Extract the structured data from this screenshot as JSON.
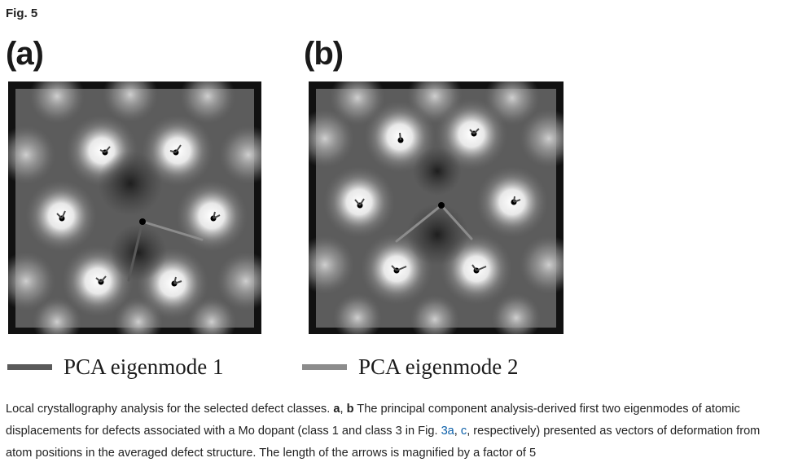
{
  "figure": {
    "label": "Fig. 5",
    "panels": [
      {
        "id": "a",
        "letter": "(a)"
      },
      {
        "id": "b",
        "letter": "(b)"
      }
    ],
    "legend": [
      {
        "label": "PCA eigenmode 1",
        "color": "#5a5a5a"
      },
      {
        "label": "PCA eigenmode 2",
        "color": "#8c8c8c"
      }
    ],
    "colors": {
      "frame": "#111111",
      "atom": "#000000",
      "eigenmode1": "#5a5a5a",
      "eigenmode2": "#8c8c8c",
      "link": "#0a5ea8"
    }
  },
  "caption": {
    "lead": "Local crystallography analysis for the selected defect classes. ",
    "bold_a": "a",
    "sep": ", ",
    "bold_b": "b",
    "text_1": " The principal component analysis-derived first two eigenmodes of atomic displacements for defects associated with a Mo dopant (class 1 and class 3 in Fig. ",
    "ref_a": "3a",
    "text_2": ", ",
    "ref_c": "c",
    "text_3": ", respectively) presented as vectors of deformation from atom positions in the averaged defect structure. The length of the arrows is magnified by a factor of 5"
  }
}
